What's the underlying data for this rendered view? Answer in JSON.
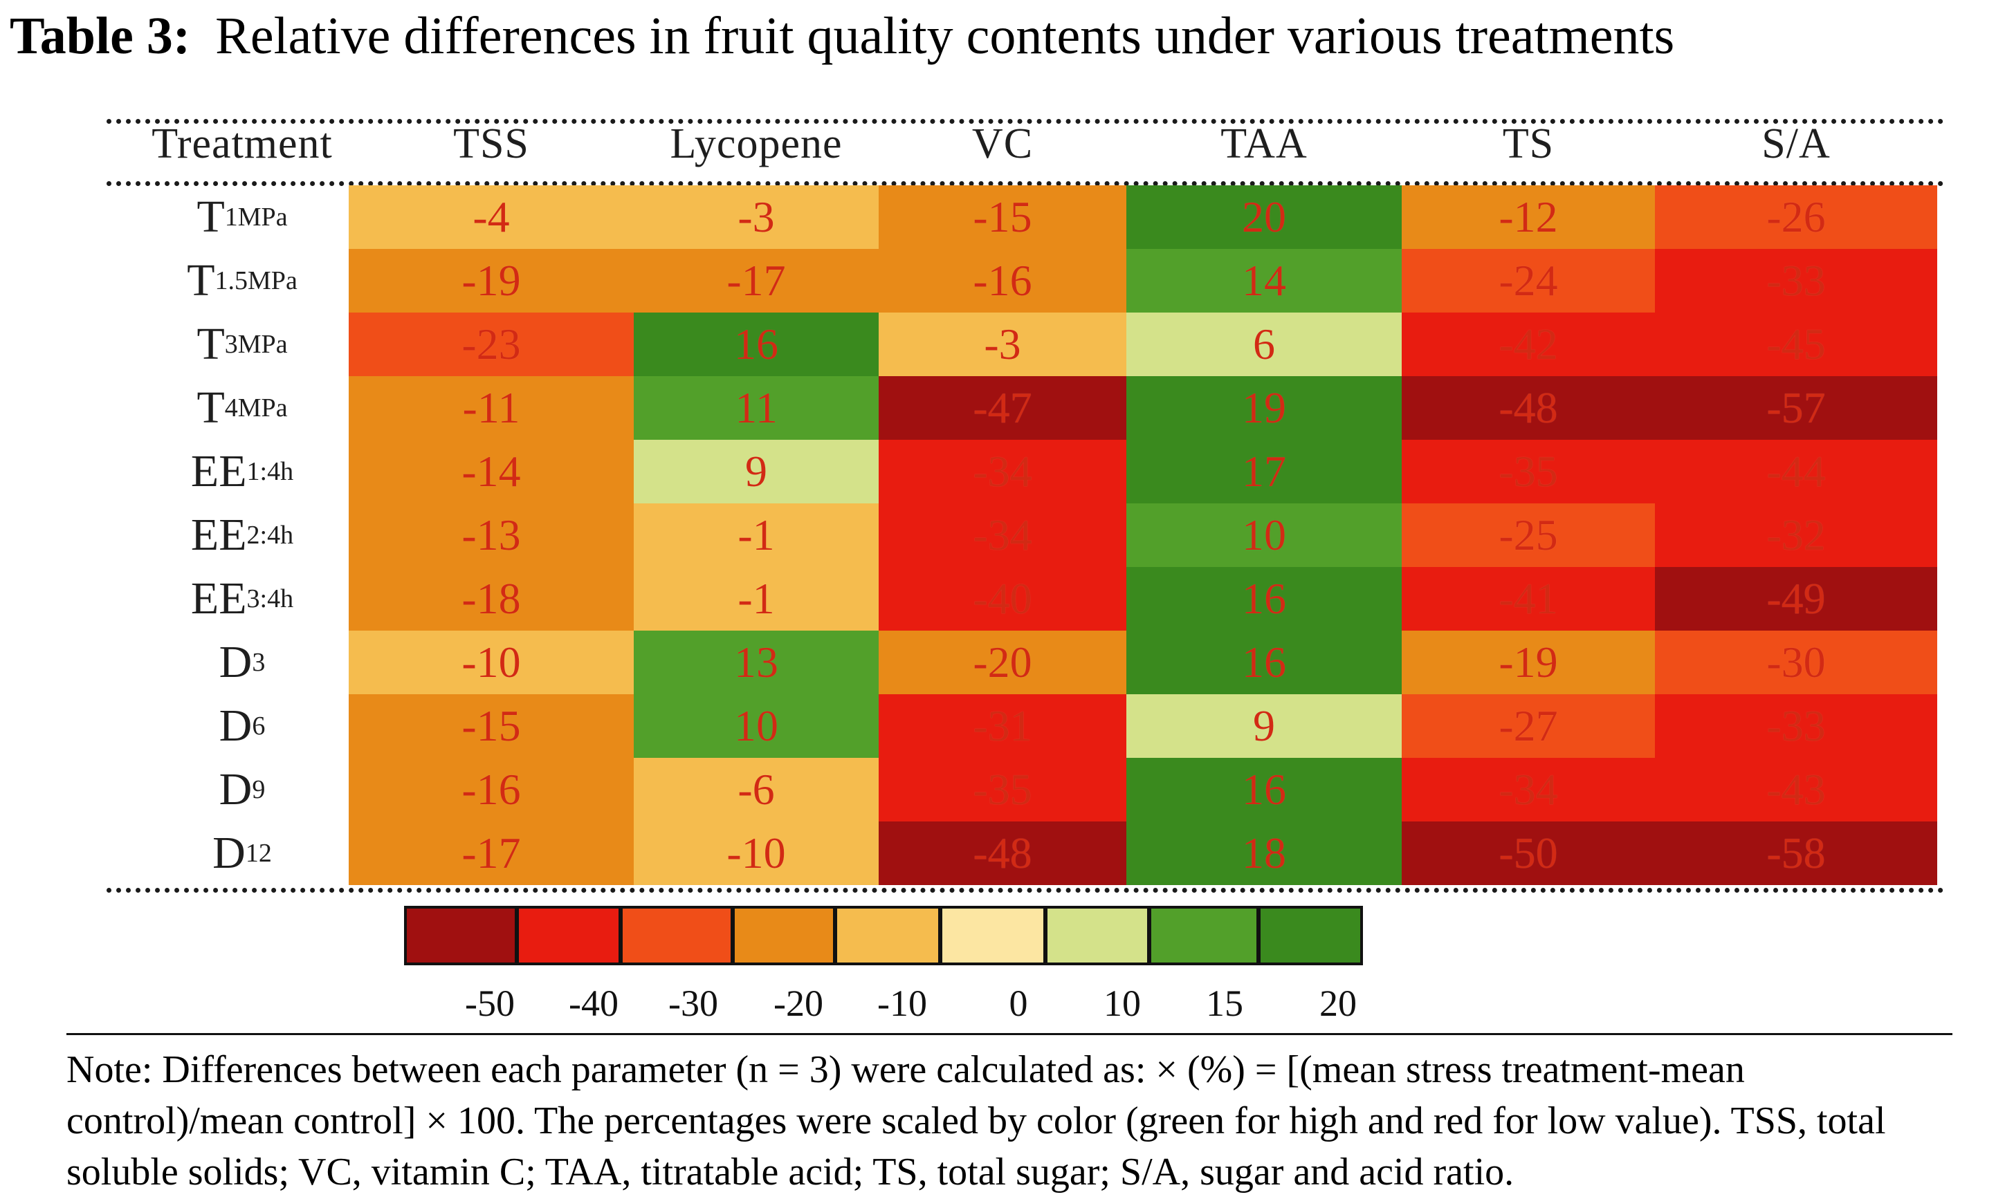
{
  "title": {
    "label": "Table 3:",
    "text": "Relative differences in fruit quality contents under various treatments"
  },
  "table": {
    "columns": [
      "Treatment",
      "TSS",
      "Lycopene",
      "VC",
      "TAA",
      "TS",
      "S/A"
    ],
    "rows": [
      {
        "label": "T",
        "sub": "1MPa",
        "values": [
          "-4",
          "-3",
          "-15",
          "20",
          "-12",
          "-26"
        ]
      },
      {
        "label": "T",
        "sub": "1.5MPa",
        "values": [
          "-19",
          "-17",
          "-16",
          "14",
          "-24",
          "-33"
        ]
      },
      {
        "label": "T",
        "sub": "3MPa",
        "values": [
          "-23",
          "16",
          "-3",
          "6",
          "-42",
          "-45"
        ]
      },
      {
        "label": "T",
        "sub": "4MPa",
        "values": [
          "-11",
          "11",
          "-47",
          "19",
          "-48",
          "-57"
        ]
      },
      {
        "label": "EE",
        "sub": "1:4h",
        "values": [
          "-14",
          "9",
          "-34",
          "17",
          "-35",
          "-44"
        ]
      },
      {
        "label": "EE",
        "sub": "2:4h",
        "values": [
          "-13",
          "-1",
          "-34",
          "10",
          "-25",
          "-32"
        ]
      },
      {
        "label": "EE",
        "sub": "3:4h",
        "values": [
          "-18",
          "-1",
          "-40",
          "16",
          "-41",
          "-49"
        ]
      },
      {
        "label": "D",
        "sub": "3",
        "values": [
          "-10",
          "13",
          "-20",
          "16",
          "-19",
          "-30"
        ]
      },
      {
        "label": "D",
        "sub": "6",
        "values": [
          "-15",
          "10",
          "-31",
          "9",
          "-27",
          "-33"
        ]
      },
      {
        "label": "D",
        "sub": "9",
        "values": [
          "-16",
          "-6",
          "-35",
          "16",
          "-34",
          "-43"
        ]
      },
      {
        "label": "D",
        "sub": "12",
        "values": [
          "-17",
          "-10",
          "-48",
          "18",
          "-50",
          "-58"
        ]
      }
    ]
  },
  "legend": {
    "colors": [
      "#a01010",
      "#e81c10",
      "#f04e18",
      "#e88a18",
      "#f5bc4e",
      "#fce6a2",
      "#d4e28a",
      "#52a02a",
      "#3a8a1e"
    ],
    "ticks": [
      "-50",
      "-40",
      "-30",
      "-20",
      "-10",
      "0",
      "10",
      "15",
      "20"
    ]
  },
  "note": "Note: Differences between each parameter (n = 3) were calculated as: × (%) = [(mean stress treatment-mean control)/mean control] × 100. The percentages were scaled by color (green for high and red for low value). TSS, total soluble solids; VC, vitamin C; TAA, titratable acid; TS, total sugar; S/A, sugar and acid ratio."
}
